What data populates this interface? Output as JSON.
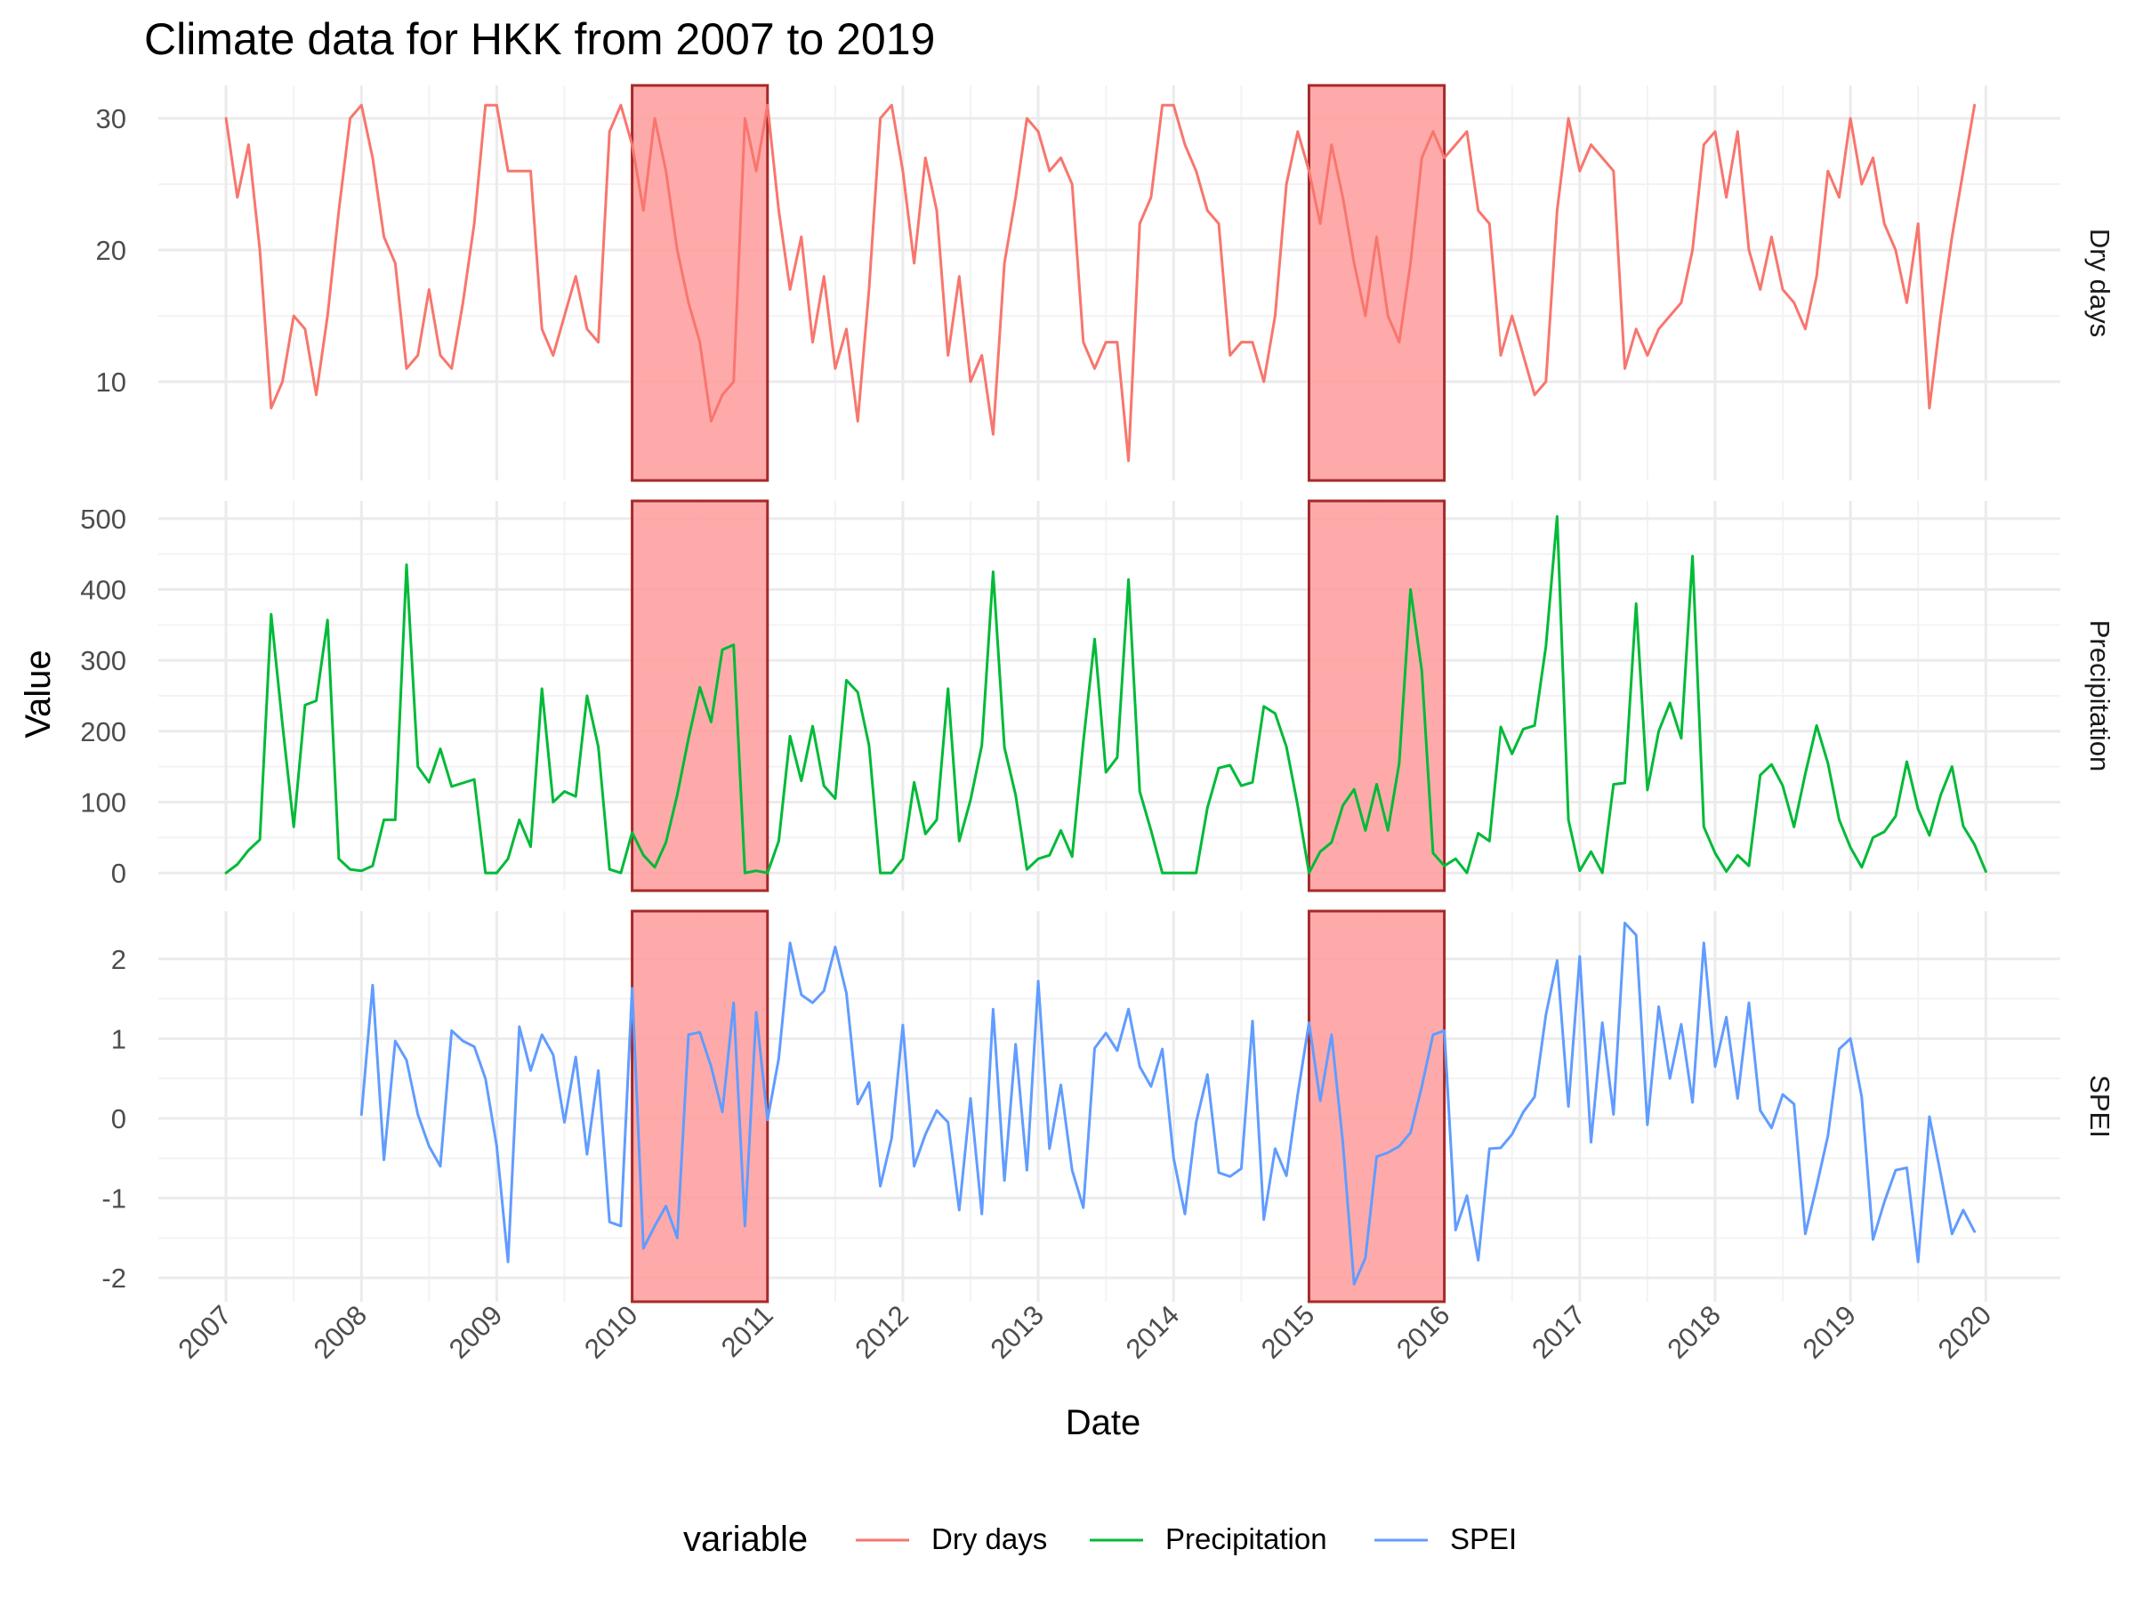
{
  "title": "Climate data for HKK from 2007 to 2019",
  "xlabel": "Date",
  "ylabel": "Value",
  "legend": {
    "title": "variable",
    "position": "bottom",
    "items": [
      {
        "label": "Dry days",
        "color": "#F8766D"
      },
      {
        "label": "Precipitation",
        "color": "#00BA38"
      },
      {
        "label": "SPEI",
        "color": "#619CFF"
      }
    ]
  },
  "colors": {
    "grid_major": "#EBEBEB",
    "grid_minor": "#F3F3F3",
    "highlight_fill": "#FF9B9B",
    "highlight_stroke": "#A52A2A",
    "text": "#000000",
    "tick_text": "#4D4D4D"
  },
  "chart_data": {
    "type": "line",
    "facets": [
      "Dry days",
      "Precipitation",
      "SPEI"
    ],
    "x_tick_labels": [
      "2007",
      "2008",
      "2009",
      "2010",
      "2011",
      "2012",
      "2013",
      "2014",
      "2015",
      "2016",
      "2017",
      "2018",
      "2019",
      "2020"
    ],
    "xlim": [
      2006.5,
      2020.55
    ],
    "highlight_ranges": [
      [
        2010,
        2011
      ],
      [
        2015,
        2016
      ]
    ],
    "panels": [
      {
        "strip": "Dry days",
        "ylim": [
          2.5,
          32.5
        ],
        "yticks": [
          10,
          20,
          30
        ],
        "series_name": "Dry days",
        "color": "#F8766D",
        "start": 2007,
        "values": [
          30,
          24,
          28,
          20,
          8,
          10,
          15,
          14,
          9,
          15,
          23,
          30,
          31,
          27,
          21,
          19,
          11,
          12,
          17,
          12,
          11,
          16,
          22,
          31,
          31,
          26,
          26,
          26,
          14,
          12,
          15,
          18,
          14,
          13,
          29,
          31,
          28,
          23,
          30,
          26,
          20,
          16,
          13,
          7,
          9,
          10,
          30,
          26,
          31,
          23,
          17,
          21,
          13,
          18,
          11,
          14,
          7,
          17,
          30,
          31,
          26,
          19,
          27,
          23,
          12,
          18,
          10,
          12,
          6,
          19,
          24,
          30,
          29,
          26,
          27,
          25,
          13,
          11,
          13,
          13,
          4,
          22,
          24,
          31,
          31,
          28,
          26,
          23,
          22,
          12,
          13,
          13,
          10,
          15,
          25,
          29,
          26,
          22,
          28,
          24,
          19,
          15,
          21,
          15,
          13,
          19,
          27,
          29,
          27,
          28,
          29,
          23,
          22,
          12,
          15,
          12,
          9,
          10,
          23,
          30,
          26,
          28,
          27,
          26,
          11,
          14,
          12,
          14,
          15,
          16,
          20,
          28,
          29,
          24,
          29,
          20,
          17,
          21,
          17,
          16,
          14,
          18,
          26,
          24,
          30,
          25,
          27,
          22,
          20,
          16,
          22,
          8,
          15,
          21,
          26,
          31
        ]
      },
      {
        "strip": "Precipitation",
        "ylim": [
          -25,
          525
        ],
        "yticks": [
          0,
          100,
          200,
          300,
          400,
          500
        ],
        "series_name": "Precipitation",
        "color": "#00BA38",
        "start": 2007,
        "values": [
          0,
          12,
          32,
          47,
          365,
          210,
          65,
          237,
          243,
          357,
          20,
          5,
          3,
          10,
          75,
          75,
          435,
          150,
          128,
          175,
          122,
          127,
          132,
          0,
          0,
          20,
          75,
          37,
          260,
          100,
          115,
          108,
          250,
          178,
          5,
          0,
          57,
          25,
          8,
          43,
          110,
          190,
          262,
          213,
          315,
          322,
          0,
          3,
          0,
          45,
          193,
          130,
          207,
          123,
          105,
          272,
          255,
          180,
          0,
          0,
          20,
          128,
          55,
          75,
          260,
          45,
          103,
          180,
          425,
          177,
          110,
          5,
          20,
          25,
          60,
          23,
          185,
          330,
          142,
          163,
          414,
          115,
          60,
          0,
          0,
          0,
          0,
          92,
          148,
          152,
          123,
          128,
          235,
          225,
          178,
          95,
          0,
          30,
          43,
          95,
          118,
          60,
          125,
          60,
          155,
          400,
          285,
          28,
          10,
          20,
          0,
          56,
          45,
          206,
          168,
          203,
          208,
          320,
          503,
          75,
          3,
          30,
          0,
          125,
          127,
          380,
          117,
          200,
          240,
          190,
          447,
          65,
          28,
          2,
          25,
          10,
          138,
          153,
          123,
          65,
          140,
          208,
          155,
          75,
          36,
          8,
          50,
          58,
          80,
          157,
          90,
          53,
          110,
          150,
          66,
          40,
          2
        ]
      },
      {
        "strip": "SPEI",
        "ylim": [
          -2.3,
          2.6
        ],
        "yticks": [
          -2,
          -1,
          0,
          1,
          2
        ],
        "series_name": "SPEI",
        "color": "#619CFF",
        "start": 2008,
        "values": [
          0.05,
          1.67,
          -0.52,
          0.97,
          0.73,
          0.05,
          -0.35,
          -0.6,
          1.1,
          0.97,
          0.9,
          0.5,
          -0.35,
          -1.8,
          1.15,
          0.6,
          1.05,
          0.8,
          -0.05,
          0.77,
          -0.45,
          0.6,
          -1.3,
          -1.35,
          1.63,
          -1.63,
          -1.35,
          -1.1,
          -1.5,
          1.05,
          1.08,
          0.65,
          0.08,
          1.45,
          -1.35,
          1.33,
          -0.02,
          0.75,
          2.2,
          1.55,
          1.45,
          1.6,
          2.15,
          1.57,
          0.18,
          0.45,
          -0.85,
          -0.25,
          1.17,
          -0.6,
          -0.2,
          0.1,
          -0.05,
          -1.15,
          0.25,
          -1.2,
          1.37,
          -0.78,
          0.93,
          -0.65,
          1.72,
          -0.38,
          0.42,
          -0.65,
          -1.12,
          0.88,
          1.07,
          0.85,
          1.37,
          0.65,
          0.4,
          0.87,
          -0.5,
          -1.2,
          -0.05,
          0.55,
          -0.68,
          -0.73,
          -0.63,
          1.22,
          -1.27,
          -0.38,
          -0.72,
          0.3,
          1.2,
          0.22,
          1.05,
          -0.3,
          -2.08,
          -1.75,
          -0.48,
          -0.43,
          -0.35,
          -0.18,
          0.4,
          1.05,
          1.1,
          -1.4,
          -0.97,
          -1.78,
          -0.38,
          -0.37,
          -0.2,
          0.08,
          0.27,
          1.3,
          1.98,
          0.15,
          2.03,
          -0.3,
          1.2,
          0.05,
          2.45,
          2.3,
          -0.08,
          1.4,
          0.5,
          1.18,
          0.2,
          2.2,
          0.65,
          1.27,
          0.25,
          1.45,
          0.1,
          -0.12,
          0.3,
          0.18,
          -1.45,
          -0.85,
          -0.22,
          0.87,
          1.0,
          0.27,
          -1.52,
          -1.05,
          -0.65,
          -0.62,
          -1.8,
          0.02,
          -0.7,
          -1.45,
          -1.15,
          -1.42
        ]
      }
    ]
  }
}
